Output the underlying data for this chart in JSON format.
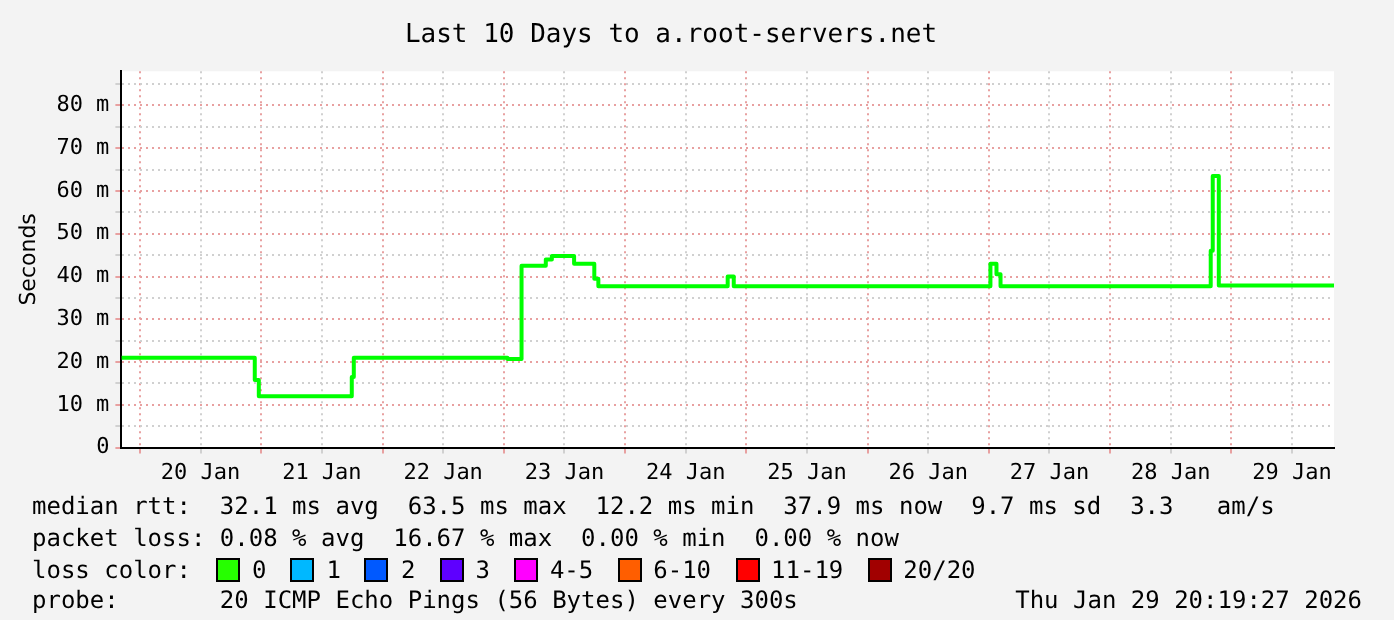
{
  "chart_data": {
    "type": "step",
    "title": "Last 10 Days to a.root-servers.net",
    "ylabel": "Seconds",
    "xlim": [
      "2026-01-19T20:19",
      "2026-01-29T20:19"
    ],
    "xticks": [
      {
        "value": "2026-01-20T00:00",
        "label": null
      },
      {
        "value": "2026-01-20T12:00",
        "label": "20 Jan"
      },
      {
        "value": "2026-01-21T00:00",
        "label": null
      },
      {
        "value": "2026-01-21T12:00",
        "label": "21 Jan"
      },
      {
        "value": "2026-01-22T00:00",
        "label": null
      },
      {
        "value": "2026-01-22T12:00",
        "label": "22 Jan"
      },
      {
        "value": "2026-01-23T00:00",
        "label": null
      },
      {
        "value": "2026-01-23T12:00",
        "label": "23 Jan"
      },
      {
        "value": "2026-01-24T00:00",
        "label": null
      },
      {
        "value": "2026-01-24T12:00",
        "label": "24 Jan"
      },
      {
        "value": "2026-01-25T00:00",
        "label": null
      },
      {
        "value": "2026-01-25T12:00",
        "label": "25 Jan"
      },
      {
        "value": "2026-01-26T00:00",
        "label": null
      },
      {
        "value": "2026-01-26T12:00",
        "label": "26 Jan"
      },
      {
        "value": "2026-01-27T00:00",
        "label": null
      },
      {
        "value": "2026-01-27T12:00",
        "label": "27 Jan"
      },
      {
        "value": "2026-01-28T00:00",
        "label": null
      },
      {
        "value": "2026-01-28T12:00",
        "label": "28 Jan"
      },
      {
        "value": "2026-01-29T00:00",
        "label": null
      },
      {
        "value": "2026-01-29T12:00",
        "label": "29 Jan"
      }
    ],
    "ylim": [
      0,
      88
    ],
    "yticks": [
      0,
      {
        "value": 5,
        "label": null
      },
      {
        "value": 10,
        "label": "10 m"
      },
      {
        "value": 15,
        "label": null
      },
      {
        "value": 20,
        "label": "20 m"
      },
      {
        "value": 25,
        "label": null
      },
      {
        "value": 30,
        "label": "30 m"
      },
      {
        "value": 35,
        "label": null
      },
      {
        "value": 40,
        "label": "40 m"
      },
      {
        "value": 45,
        "label": null
      },
      {
        "value": 50,
        "label": "50 m"
      },
      {
        "value": 55,
        "label": null
      },
      {
        "value": 60,
        "label": "60 m"
      },
      {
        "value": 65,
        "label": null
      },
      {
        "value": 70,
        "label": "70 m"
      },
      {
        "value": 75,
        "label": null
      },
      {
        "value": 80,
        "label": "80 m"
      },
      {
        "value": 85,
        "label": null
      }
    ],
    "grid": true,
    "x": [
      "2026-01-19T20:19",
      "2026-01-20T22:43",
      "2026-01-20T23:31",
      "2026-01-21T17:55",
      "2026-01-21T18:19",
      "2026-01-23T00:43",
      "2026-01-23T03:31",
      "2026-01-23T08:19",
      "2026-01-23T09:31",
      "2026-01-23T13:55",
      "2026-01-23T17:55",
      "2026-01-23T18:43",
      "2026-01-24T20:19",
      "2026-01-24T21:31",
      "2026-01-27T00:19",
      "2026-01-27T01:31",
      "2026-01-27T02:19",
      "2026-01-28T19:55",
      "2026-01-28T20:19",
      "2026-01-28T21:31",
      "2026-01-29T20:19"
    ],
    "series": [
      {
        "color": "#00ff00",
        "values": [
          21,
          15.8,
          12,
          16.5,
          21,
          20.7,
          42.5,
          44,
          44.8,
          43,
          39.5,
          37.7,
          40,
          37.7,
          43,
          40.5,
          37.7,
          46,
          63.5,
          37.9,
          37.9
        ]
      }
    ],
    "annotations": [
      "median rtt:  32.1 ms avg  63.5 ms max  12.2 ms min  37.9 ms now  9.7 ms sd  3.3   am/s",
      "packet loss: 0.08 % avg  16.67 % max  0.00 % min  0.00 % now",
      "loss color:",
      "0",
      "1",
      "2",
      "3",
      "4-5",
      "6-10",
      "11-19",
      "20/20",
      "probe:       20 ICMP Echo Pings (56 Bytes) every 300s",
      "Thu Jan 29 20:19:27 2026"
    ]
  }
}
